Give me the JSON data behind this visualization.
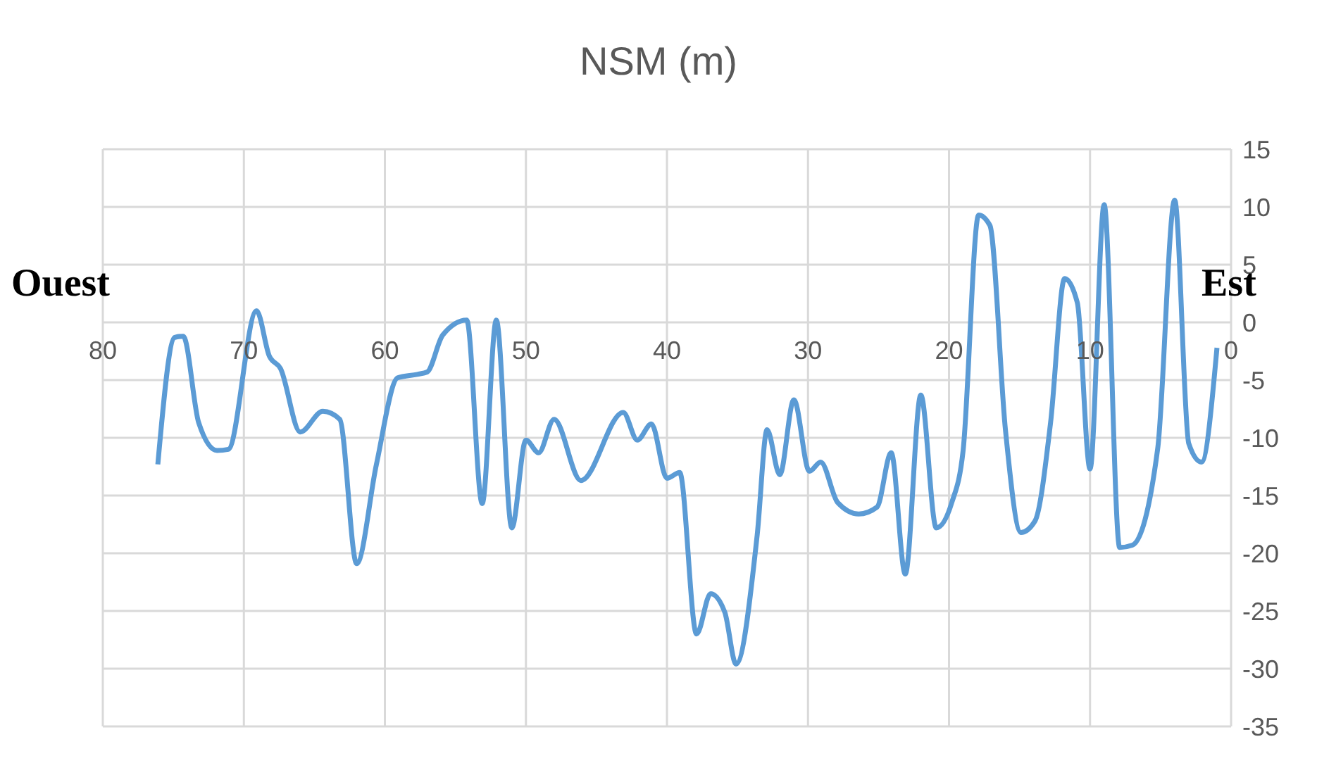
{
  "chart_data": {
    "type": "line",
    "title": "NSM (m)",
    "annotations": [
      "Ouest",
      "Est"
    ],
    "x": [
      76.1,
      74.9,
      74.3,
      73.2,
      71.9,
      71.1,
      69.1,
      68.2,
      67.4,
      66.0,
      64.4,
      63.2,
      62.0,
      60.6,
      59.1,
      57.7,
      57.0,
      55.9,
      54.2,
      53.1,
      52.1,
      51.0,
      50.0,
      49.1,
      48.0,
      46.1,
      43.1,
      42.1,
      41.1,
      40.0,
      39.1,
      37.9,
      36.9,
      35.9,
      35.1,
      33.6,
      32.9,
      32.0,
      31.0,
      29.9,
      29.1,
      27.9,
      26.4,
      25.1,
      24.1,
      23.1,
      22.0,
      20.9,
      19.8,
      19.0,
      17.9,
      17.1,
      16.0,
      14.9,
      13.9,
      12.8,
      11.8,
      10.9,
      10.0,
      9.0,
      7.9,
      7.0,
      5.2,
      4.0,
      3.0,
      2.1,
      1.0
    ],
    "series": [
      {
        "color": "#5b9bd5",
        "values": [
          -12.3,
          -1.3,
          -1.2,
          -8.7,
          -11.1,
          -11.0,
          1.0,
          -2.9,
          -4.0,
          -9.5,
          -7.7,
          -8.4,
          -20.9,
          -12.3,
          -4.8,
          -4.5,
          -4.3,
          -1.1,
          0.2,
          -15.7,
          0.2,
          -17.8,
          -10.2,
          -11.3,
          -8.4,
          -13.7,
          -7.8,
          -10.2,
          -8.8,
          -13.5,
          -13.0,
          -27.0,
          -23.5,
          -25.1,
          -29.6,
          -18.4,
          -9.3,
          -13.2,
          -6.7,
          -12.9,
          -12.1,
          -15.6,
          -16.6,
          -16.0,
          -11.3,
          -21.8,
          -6.3,
          -17.8,
          -15.6,
          -11.1,
          9.3,
          8.4,
          -9.3,
          -18.2,
          -17.2,
          -8.7,
          3.8,
          1.7,
          -12.7,
          10.2,
          -19.5,
          -19.3,
          -10.9,
          10.6,
          -10.5,
          -12.1,
          -2.2
        ]
      }
    ],
    "xlim": [
      80,
      0
    ],
    "xticks": [
      80,
      70,
      60,
      50,
      40,
      30,
      20,
      10,
      0
    ],
    "ylim": [
      -35,
      15
    ],
    "yticks": [
      -35,
      -30,
      -25,
      -20,
      -15,
      -10,
      -5,
      0,
      5,
      10,
      15
    ],
    "grid": true,
    "marker": "none",
    "line_style": "solid",
    "legend": false
  }
}
